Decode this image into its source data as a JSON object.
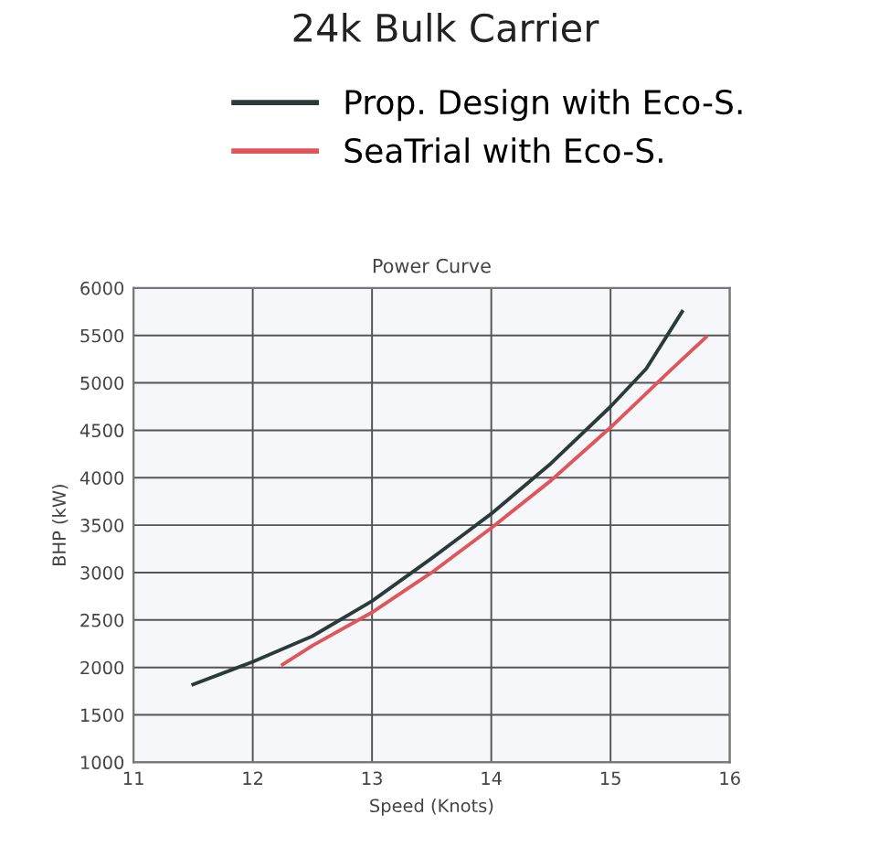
{
  "chart_data": {
    "type": "line",
    "title": "24k Bulk Carrier",
    "subtitle": "Power Curve",
    "xlabel": "Speed (Knots)",
    "ylabel": "BHP (kW)",
    "xlim": [
      11,
      16
    ],
    "xticks": [
      11,
      12,
      13,
      14,
      15,
      16
    ],
    "ylim": [
      1000,
      6000
    ],
    "yticks": [
      1000,
      1500,
      2000,
      2500,
      3000,
      3500,
      4000,
      4500,
      5000,
      5500,
      6000
    ],
    "grid": true,
    "legend": "top",
    "line_style": "solid",
    "marker": "none",
    "series": [
      {
        "name": "Prop. Design with Eco-S.",
        "color": "#2b3a3a",
        "x": [
          11.5,
          12,
          12.5,
          13,
          13.5,
          14,
          14.5,
          15,
          15.3,
          15.6
        ],
        "values": [
          1820,
          2060,
          2330,
          2700,
          3150,
          3620,
          4150,
          4750,
          5150,
          5750
        ]
      },
      {
        "name": "SeaTrial with Eco-S.",
        "color": "#e0555a",
        "x": [
          12.25,
          12.5,
          13,
          13.5,
          14,
          14.5,
          15,
          15.5,
          15.8
        ],
        "values": [
          2030,
          2230,
          2580,
          3000,
          3470,
          3970,
          4530,
          5130,
          5480
        ]
      }
    ]
  }
}
